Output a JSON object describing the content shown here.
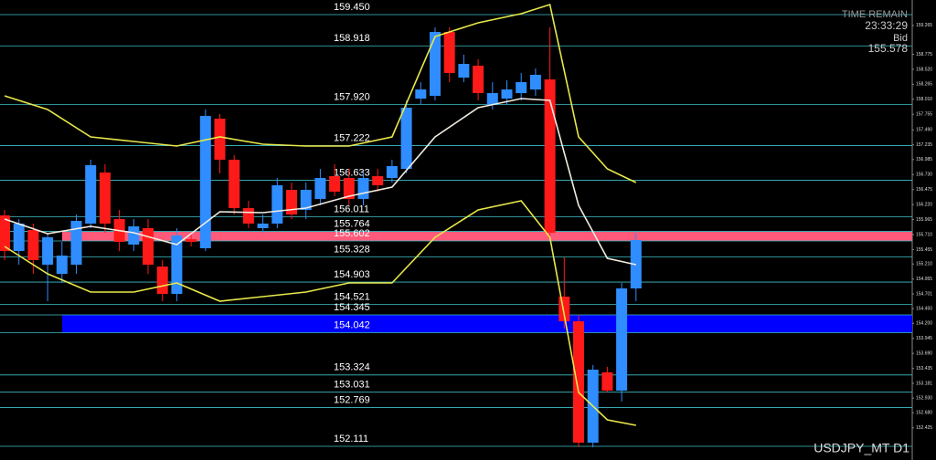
{
  "chart_data": {
    "type": "candlestick",
    "symbol": "USDJPY_MT D1",
    "info": {
      "timer_label": "TIME REMAIN",
      "timer": "23:33:29",
      "bid_label": "Bid",
      "bid": 155.578
    },
    "up_color": "#2f8dff",
    "down_color": "#ff1a1a",
    "ylim": [
      151.878,
      159.698
    ],
    "yticks": [
      159.265,
      158.775,
      {
        "value": 158.52,
        "label": "158.520"
      },
      158.265,
      {
        "value": 158.01,
        "label": "158.010"
      },
      157.755,
      {
        "value": 157.49,
        "label": "157.490"
      },
      157.235,
      156.985,
      {
        "value": 156.73,
        "label": "156.730"
      },
      156.475,
      {
        "value": 156.22,
        "label": "156.220"
      },
      155.965,
      {
        "value": 155.71,
        "label": "155.710"
      },
      155.455,
      {
        "value": 155.21,
        "label": "155.210"
      },
      154.955,
      154.701,
      {
        "value": 154.45,
        "label": "154.450"
      },
      {
        "value": 154.2,
        "label": "154.200"
      },
      153.945,
      {
        "value": 153.69,
        "label": "153.690"
      },
      153.435,
      153.181,
      {
        "value": 152.93,
        "label": "152.930"
      },
      {
        "value": 152.68,
        "label": "152.680"
      },
      152.425
    ],
    "levels": [
      {
        "value": 159.45,
        "label": "159.450"
      },
      158.918,
      {
        "value": 157.92,
        "label": "157.920"
      },
      157.222,
      156.633,
      156.011,
      155.764,
      155.602,
      155.328,
      154.903,
      154.521,
      154.345,
      154.042,
      153.324,
      153.031,
      152.769,
      152.111
    ],
    "level_color": "#3fbfc8",
    "zones": [
      {
        "levels": [
          6,
          7
        ],
        "color": "#ff5a7a"
      },
      {
        "levels": [
          11,
          12
        ],
        "color": "#0000ff"
      }
    ],
    "open": [
      156.036,
      155.431,
      155.788,
      155.198,
      155.043,
      155.198,
      155.897,
      156.765,
      155.974,
      155.54,
      155.819,
      155.167,
      154.702,
      155.633,
      155.478,
      157.681,
      156.983,
      156.16,
      155.819,
      155.897,
      156.471,
      156.129,
      156.316,
      156.703,
      156.672,
      156.316,
      156.703,
      156.672,
      156.827,
      158.022,
      158.069,
      159.155,
      158.379,
      158.581,
      157.914,
      158.022,
      158.115,
      158.177,
      158.348,
      154.655,
      154.236,
      152.173,
      153.368,
      153.057,
      154.795
    ],
    "high": [
      156.129,
      155.974,
      155.897,
      155.741,
      155.586,
      156.052,
      156.983,
      156.905,
      156.129,
      155.974,
      155.974,
      155.276,
      155.819,
      155.741,
      157.836,
      157.758,
      157.06,
      156.284,
      156.052,
      156.672,
      156.595,
      156.595,
      156.827,
      156.905,
      156.827,
      156.781,
      156.827,
      156.983,
      157.991,
      158.302,
      159.233,
      159.233,
      158.767,
      158.689,
      158.302,
      158.333,
      158.457,
      158.534,
      159.233,
      155.322,
      154.345,
      153.492,
      153.461,
      154.888,
      155.741
    ],
    "low": [
      155.276,
      155.198,
      155.043,
      154.578,
      154.888,
      155.043,
      155.819,
      155.741,
      155.431,
      155.431,
      155.043,
      154.578,
      154.578,
      155.509,
      155.431,
      156.75,
      156.052,
      155.819,
      155.741,
      155.819,
      155.974,
      155.974,
      156.207,
      156.362,
      156.207,
      156.207,
      156.44,
      156.595,
      156.75,
      157.914,
      157.991,
      158.302,
      158.302,
      157.991,
      157.836,
      157.914,
      157.991,
      158.069,
      155.664,
      154.112,
      152.095,
      152.095,
      153.026,
      152.871,
      154.578
    ],
    "close": [
      155.431,
      155.897,
      155.276,
      155.664,
      155.353,
      155.943,
      156.89,
      155.897,
      155.586,
      155.85,
      155.198,
      154.702,
      155.695,
      155.586,
      157.727,
      156.983,
      156.16,
      155.897,
      155.897,
      156.548,
      156.052,
      156.471,
      156.672,
      156.44,
      156.316,
      156.672,
      156.548,
      156.874,
      157.867,
      158.177,
      159.155,
      158.457,
      158.612,
      158.115,
      158.115,
      158.177,
      158.302,
      158.426,
      155.741,
      154.236,
      152.173,
      153.414,
      153.057,
      154.795,
      155.617
    ],
    "overlays": [
      {
        "color": "#e8e84a",
        "x": [
          0,
          3,
          6,
          9,
          12,
          15,
          18,
          21,
          24,
          27,
          30,
          33,
          36,
          38,
          40,
          42,
          44
        ],
        "values": [
          158.069,
          157.836,
          157.371,
          157.293,
          157.215,
          157.371,
          157.246,
          157.215,
          157.215,
          157.371,
          159.077,
          159.31,
          159.465,
          159.62,
          157.371,
          156.827,
          156.595
        ]
      },
      {
        "color": "#e8e84a",
        "x": [
          0,
          3,
          6,
          9,
          12,
          15,
          18,
          21,
          24,
          27,
          30,
          33,
          36,
          38,
          40,
          42,
          44
        ],
        "values": [
          155.509,
          155.043,
          154.733,
          154.733,
          154.888,
          154.578,
          154.655,
          154.733,
          154.888,
          154.888,
          155.664,
          156.129,
          156.284,
          155.664,
          153.026,
          152.56,
          152.467
        ]
      },
      {
        "color": "#f2ece0",
        "x": [
          0,
          3,
          6,
          9,
          12,
          15,
          18,
          21,
          24,
          27,
          30,
          33,
          36,
          38,
          40,
          42,
          44
        ],
        "values": [
          155.974,
          155.726,
          155.85,
          155.741,
          155.54,
          156.098,
          156.083,
          156.16,
          156.362,
          156.517,
          157.371,
          157.867,
          158.022,
          157.991,
          156.207,
          155.307,
          155.198
        ]
      }
    ]
  }
}
